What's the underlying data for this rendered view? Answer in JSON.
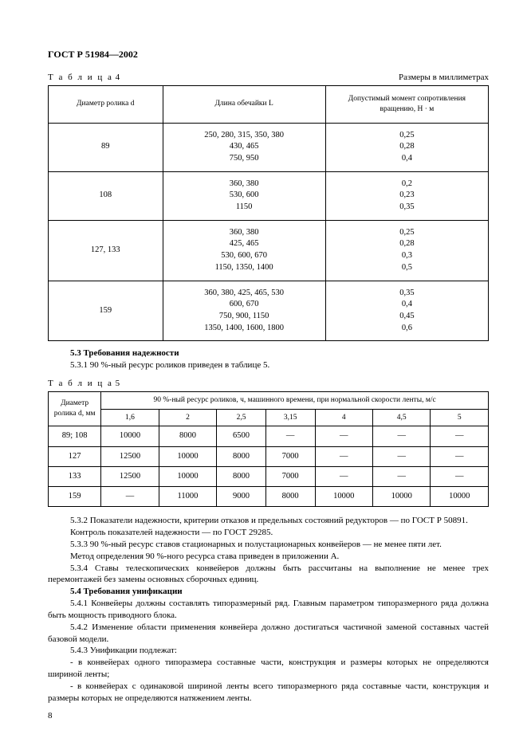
{
  "page": {
    "header": "ГОСТ Р 51984—2002",
    "page_number": "8"
  },
  "table4": {
    "label_prefix": "Т а б л и ц а",
    "label_num": "4",
    "units": "Размеры в миллиметрах",
    "headers": {
      "c1": "Диаметр ролика d",
      "c2": "Длина обечайки L",
      "c3": "Допустимый момент сопротивления вращению, Н · м"
    },
    "rows": [
      {
        "c1": "89",
        "c2": "250, 280, 315, 350, 380\n430, 465\n750, 950",
        "c3": "0,25\n0,28\n0,4"
      },
      {
        "c1": "108",
        "c2": "360, 380\n530, 600\n1150",
        "c3": "0,2\n0,23\n0,35"
      },
      {
        "c1": "127, 133",
        "c2": "360, 380\n425, 465\n530, 600, 670\n1150, 1350, 1400",
        "c3": "0,25\n0,28\n0,3\n0,5"
      },
      {
        "c1": "159",
        "c2": "360, 380, 425, 465, 530\n600, 670\n750, 900, 1150\n1350, 1400, 1600, 1800",
        "c3": "0,35\n0,4\n0,45\n0,6"
      }
    ]
  },
  "section53": {
    "heading": "5.3 Требования надежности",
    "p1": "5.3.1 90 %-ный ресурс роликов приведен в таблице 5."
  },
  "table5": {
    "label_prefix": "Т а б л и ц а",
    "label_num": "5",
    "header_rowlabel": "Диаметр ролика d, мм",
    "header_span": "90 %-ный ресурс роликов, ч, машинного времени, при нормальной скорости ленты, м/с",
    "speeds": [
      "1,6",
      "2",
      "2,5",
      "3,15",
      "4",
      "4,5",
      "5"
    ],
    "rows": [
      {
        "d": "89; 108",
        "v": [
          "10000",
          "8000",
          "6500",
          "—",
          "—",
          "—",
          "—"
        ]
      },
      {
        "d": "127",
        "v": [
          "12500",
          "10000",
          "8000",
          "7000",
          "—",
          "—",
          "—"
        ]
      },
      {
        "d": "133",
        "v": [
          "12500",
          "10000",
          "8000",
          "7000",
          "—",
          "—",
          "—"
        ]
      },
      {
        "d": "159",
        "v": [
          "—",
          "11000",
          "9000",
          "8000",
          "10000",
          "10000",
          "10000"
        ]
      }
    ]
  },
  "body": {
    "p532": "5.3.2 Показатели надежности, критерии отказов и предельных состояний редукторов — по ГОСТ Р 50891.",
    "p532b": "Контроль показателей надежности — по ГОСТ 29285.",
    "p533": "5.3.3 90 %-ный ресурс ставов стационарных и полустационарных конвейеров — не менее пяти лет.",
    "p533b": "Метод определения 90 %-ного ресурса става приведен в приложении А.",
    "p534": "5.3.4 Ставы телескопических конвейеров должны быть рассчитаны на выполнение не менее трех перемонтажей без замены основных сборочных единиц.",
    "h54": "5.4 Требования унификации",
    "p541": "5.4.1 Конвейеры должны составлять типоразмерный ряд. Главным параметром типоразмерного ряда должна быть мощность приводного блока.",
    "p542": "5.4.2 Изменение области применения конвейера должно достигаться частичной заменой составных частей базовой модели.",
    "p543": "5.4.3 Унификации подлежат:",
    "b1": "- в конвейерах одного типоразмера составные части, конструкция и размеры которых не определяются шириной ленты;",
    "b2": "- в конвейерах с одинаковой шириной ленты всего типоразмерного ряда составные части, конструкция и размеры которых не определяются натяжением ленты."
  }
}
